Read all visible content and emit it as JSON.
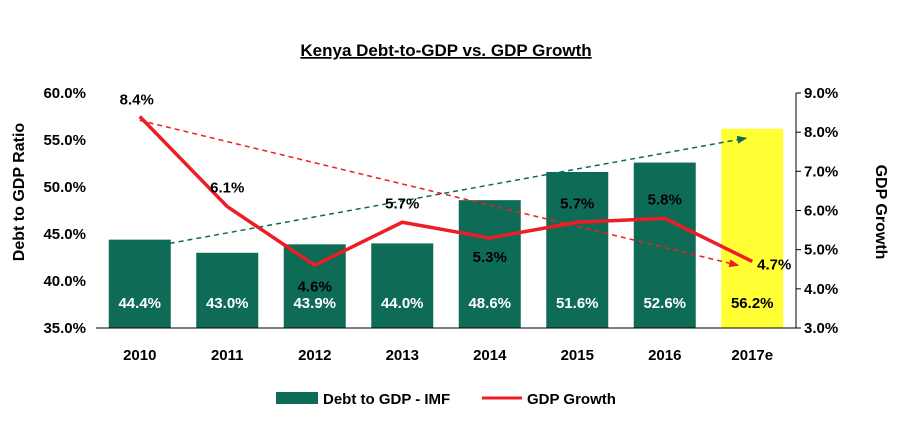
{
  "chart_data": {
    "type": "bar",
    "title": "Kenya Debt-to-GDP vs. GDP Growth",
    "categories": [
      "2010",
      "2011",
      "2012",
      "2013",
      "2014",
      "2015",
      "2016",
      "2017e"
    ],
    "series": [
      {
        "name": "Debt to GDP - IMF",
        "type": "bar",
        "axis": "left",
        "values": [
          44.4,
          43.0,
          43.9,
          44.0,
          48.6,
          51.6,
          52.6,
          56.2
        ],
        "labels": [
          "44.4%",
          "43.0%",
          "43.9%",
          "44.0%",
          "48.6%",
          "51.6%",
          "52.6%",
          "56.2%"
        ],
        "color": "#0e6b55",
        "highlight_color": "#ffff33",
        "highlight_index": 7
      },
      {
        "name": "GDP Growth",
        "type": "line",
        "axis": "right",
        "values": [
          8.4,
          6.1,
          4.6,
          5.7,
          5.3,
          5.7,
          5.8,
          4.7
        ],
        "labels": [
          "8.4%",
          "6.1%",
          "4.6%",
          "5.7%",
          "5.3%",
          "5.7%",
          "5.8%",
          "4.7%"
        ],
        "color": "#ee1c25"
      }
    ],
    "y_left": {
      "label": "Debt to GDP Ratio",
      "lim": [
        35,
        60
      ],
      "ticks": [
        35,
        40,
        45,
        50,
        55,
        60
      ],
      "tick_labels": [
        "35.0%",
        "40.0%",
        "45.0%",
        "50.0%",
        "55.0%",
        "60.0%"
      ]
    },
    "y_right": {
      "label": "GDP Growth",
      "lim": [
        3,
        9
      ],
      "ticks": [
        3,
        4,
        5,
        6,
        7,
        8,
        9
      ],
      "tick_labels": [
        "3.0%",
        "4.0%",
        "5.0%",
        "6.0%",
        "7.0%",
        "8.0%",
        "9.0%"
      ]
    },
    "trend_lines": [
      {
        "axis": "left",
        "from": {
          "category": "2010",
          "value": 44.0
        },
        "to": {
          "category": "2017e",
          "value": 55.2
        },
        "color": "#0e6b55",
        "style": "dashed",
        "arrow": true
      },
      {
        "axis": "right",
        "from": {
          "category": "2010",
          "value": 8.3
        },
        "to": {
          "category": "2017e",
          "value": 4.6
        },
        "color": "#ee1c25",
        "style": "dashed",
        "arrow": true
      }
    ],
    "legend": {
      "position": "bottom"
    },
    "grid": false
  }
}
